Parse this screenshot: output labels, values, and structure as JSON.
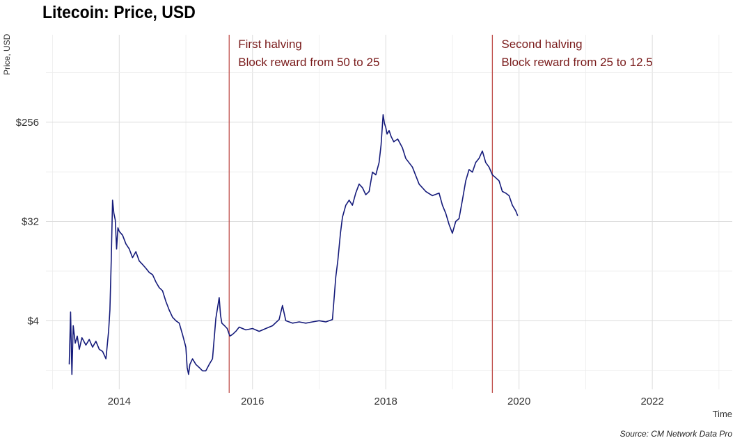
{
  "chart_data": {
    "type": "line",
    "title": "Litecoin: Price, USD",
    "xlabel": "Time",
    "ylabel": "Price, USD",
    "source": "Source: CM Network Data Pro",
    "y_scale": "log2",
    "xlim": [
      2012.9,
      2023.2
    ],
    "ylim": [
      0.95,
      1600
    ],
    "grid": true,
    "x_ticks": [
      {
        "value": 2014,
        "label": "2014"
      },
      {
        "value": 2016,
        "label": "2016"
      },
      {
        "value": 2018,
        "label": "2018"
      },
      {
        "value": 2020,
        "label": "2020"
      },
      {
        "value": 2022,
        "label": "2022"
      }
    ],
    "y_ticks": [
      {
        "value": 4,
        "label": "$4"
      },
      {
        "value": 32,
        "label": "$32"
      },
      {
        "value": 256,
        "label": "$256"
      }
    ],
    "colors": {
      "line": "#141a7a",
      "halving": "#c0504d",
      "annotation_text": "#7a1c1c",
      "grid_major": "#dcdcdc",
      "grid_minor": "#ececec"
    },
    "annotations": [
      {
        "x": 2015.65,
        "line1": "First halving",
        "line2": "Block reward from 50 to 25"
      },
      {
        "x": 2019.6,
        "line1": "Second halving",
        "line2": "Block reward from 25 to 12.5"
      }
    ],
    "series": [
      {
        "x": [
          2013.25,
          2013.27,
          2013.29,
          2013.31,
          2013.34,
          2013.37,
          2013.4,
          2013.44,
          2013.5,
          2013.55,
          2013.6,
          2013.65,
          2013.7,
          2013.75,
          2013.8,
          2013.82,
          2013.84,
          2013.86,
          2013.88,
          2013.9,
          2013.92,
          2013.94,
          2013.96,
          2013.98,
          2014.0,
          2014.05,
          2014.1,
          2014.15,
          2014.2,
          2014.25,
          2014.3,
          2014.35,
          2014.4,
          2014.45,
          2014.5,
          2014.55,
          2014.6,
          2014.65,
          2014.7,
          2014.75,
          2014.8,
          2014.85,
          2014.9,
          2014.95,
          2015.0,
          2015.02,
          2015.04,
          2015.06,
          2015.1,
          2015.15,
          2015.2,
          2015.25,
          2015.3,
          2015.35,
          2015.4,
          2015.45,
          2015.5,
          2015.52,
          2015.54,
          2015.58,
          2015.62,
          2015.66,
          2015.7,
          2015.75,
          2015.8,
          2015.9,
          2016.0,
          2016.1,
          2016.2,
          2016.3,
          2016.4,
          2016.45,
          2016.5,
          2016.55,
          2016.6,
          2016.7,
          2016.8,
          2016.9,
          2017.0,
          2017.1,
          2017.2,
          2017.25,
          2017.28,
          2017.32,
          2017.35,
          2017.4,
          2017.45,
          2017.5,
          2017.55,
          2017.6,
          2017.65,
          2017.7,
          2017.75,
          2017.8,
          2017.85,
          2017.9,
          2017.93,
          2017.96,
          2017.98,
          2018.0,
          2018.02,
          2018.05,
          2018.08,
          2018.12,
          2018.18,
          2018.25,
          2018.3,
          2018.4,
          2018.5,
          2018.6,
          2018.7,
          2018.8,
          2018.85,
          2018.9,
          2018.95,
          2019.0,
          2019.05,
          2019.1,
          2019.15,
          2019.2,
          2019.25,
          2019.3,
          2019.35,
          2019.4,
          2019.45,
          2019.5,
          2019.55,
          2019.6,
          2019.65,
          2019.7,
          2019.75,
          2019.8,
          2019.85,
          2019.9,
          2019.95,
          2019.98
        ],
        "values": [
          1.6,
          4.8,
          1.3,
          3.6,
          2.5,
          2.9,
          2.2,
          2.8,
          2.4,
          2.7,
          2.3,
          2.6,
          2.2,
          2.1,
          1.8,
          2.4,
          3.2,
          5.0,
          14,
          50,
          38,
          33,
          18,
          28,
          26,
          24,
          20,
          18,
          15,
          17,
          14,
          13,
          12,
          11,
          10.5,
          9,
          8,
          7.5,
          6,
          5,
          4.3,
          4.0,
          3.8,
          3.0,
          2.3,
          1.5,
          1.3,
          1.6,
          1.8,
          1.6,
          1.5,
          1.4,
          1.4,
          1.6,
          1.8,
          4.2,
          6.5,
          4.5,
          3.8,
          3.6,
          3.4,
          2.9,
          3.0,
          3.2,
          3.5,
          3.3,
          3.4,
          3.2,
          3.4,
          3.6,
          4.1,
          5.5,
          4.0,
          3.9,
          3.8,
          3.9,
          3.8,
          3.9,
          4.0,
          3.9,
          4.1,
          10,
          14,
          25,
          35,
          45,
          50,
          45,
          58,
          70,
          65,
          56,
          60,
          90,
          85,
          110,
          160,
          300,
          250,
          230,
          200,
          215,
          190,
          170,
          180,
          150,
          120,
          100,
          70,
          60,
          55,
          58,
          45,
          38,
          30,
          25,
          32,
          34,
          50,
          75,
          95,
          90,
          110,
          120,
          140,
          110,
          100,
          85,
          80,
          75,
          60,
          58,
          55,
          45,
          40,
          36
        ]
      }
    ]
  }
}
